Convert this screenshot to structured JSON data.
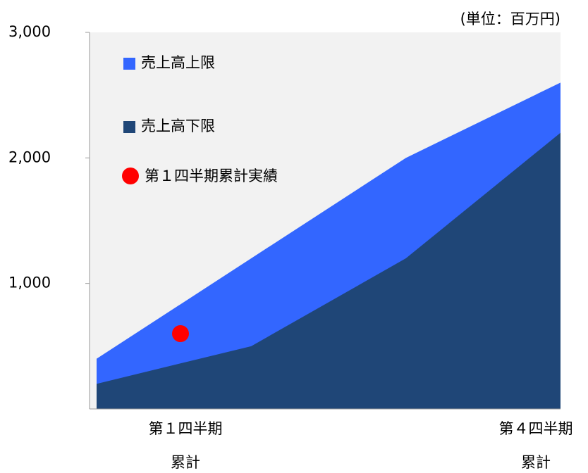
{
  "chart_data": {
    "type": "area",
    "unit_label": "(単位：百万円)",
    "categories": [
      [
        "第１四半期",
        "累計"
      ],
      null,
      null,
      [
        "第４四半期",
        "累計"
      ]
    ],
    "series": [
      {
        "name": "売上高上限",
        "color": "#3366ff",
        "values": [
          400,
          1200,
          2000,
          2600
        ]
      },
      {
        "name": "売上高下限",
        "color": "#1f4677",
        "values": [
          200,
          500,
          1200,
          2200
        ]
      }
    ],
    "point": {
      "name": "第１四半期累計実績",
      "color": "#ff0000",
      "category": 0,
      "value": 600
    },
    "ylim": [
      0,
      3000
    ],
    "yticks": [
      {
        "value": 1000,
        "label": "1,000"
      },
      {
        "value": 2000,
        "label": "2,000"
      },
      {
        "value": 3000,
        "label": "3,000"
      }
    ],
    "plot_background": "#f2f2f2"
  }
}
